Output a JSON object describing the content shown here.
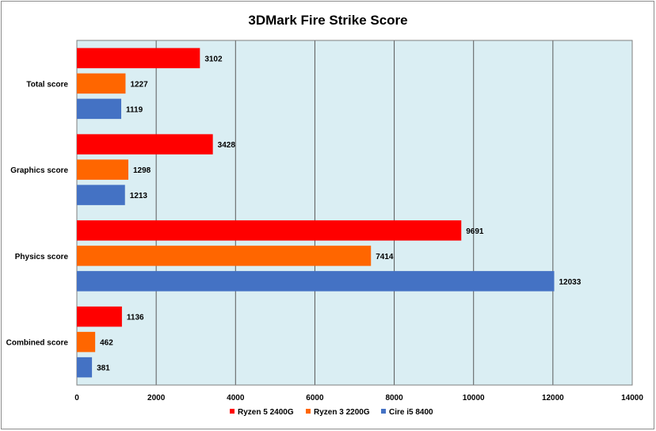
{
  "chart_data": {
    "type": "bar",
    "orientation": "horizontal",
    "title": "3DMark Fire Strike Score",
    "categories": [
      "Total score",
      "Graphics score",
      "Physics score",
      "Combined score"
    ],
    "series": [
      {
        "name": "Ryzen 5 2400G",
        "color": "#ff0000",
        "values": [
          3102,
          3428,
          9691,
          1136
        ]
      },
      {
        "name": "Ryzen 3 2200G",
        "color": "#ff6600",
        "values": [
          1227,
          1298,
          7414,
          462
        ]
      },
      {
        "name": "Cire i5 8400",
        "color": "#4472c4",
        "values": [
          1119,
          1213,
          12033,
          381
        ]
      }
    ],
    "xlim": [
      0,
      14000
    ],
    "xticks": [
      0,
      2000,
      4000,
      6000,
      8000,
      10000,
      12000,
      14000
    ],
    "grid": true,
    "plot_background": "#daeef3",
    "legend_position": "bottom"
  }
}
